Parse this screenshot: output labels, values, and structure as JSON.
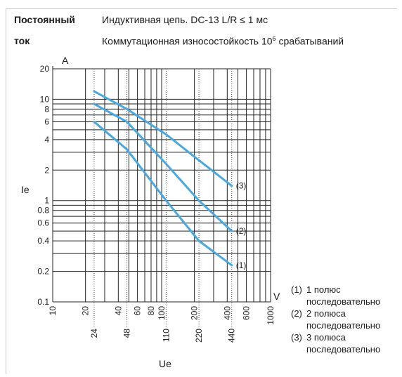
{
  "header": {
    "label_line1": "Постоянный",
    "label_line2": "ток",
    "text_line1": "Индуктивная цепь. DC-13 L/R ≤ 1 мс",
    "text_line2_prefix": "Коммутационная износостойкость 10",
    "text_line2_sup": "6",
    "text_line2_suffix": " срабатываний"
  },
  "chart_data": {
    "type": "line",
    "xscale": "log",
    "yscale": "log",
    "xlabel": "Ue",
    "ylabel": "Ie",
    "x_unit": "V",
    "y_unit": "A",
    "xlim": [
      10,
      1000
    ],
    "ylim": [
      0.1,
      20
    ],
    "grid": true,
    "x_ticks_top_row": [
      "10",
      "20",
      "40",
      "60",
      "80",
      "100",
      "200",
      "400",
      "600",
      "1000"
    ],
    "x_ticks_bottom_row": [
      "24",
      "48",
      "110",
      "220",
      "440"
    ],
    "y_ticks": [
      "0.1",
      "0.2",
      "0.4",
      "0.6",
      "0.8",
      "1",
      "2",
      "4",
      "6",
      "8",
      "10",
      "20"
    ],
    "series": [
      {
        "name": "(1)",
        "x": [
          24,
          48,
          110,
          220,
          440
        ],
        "y": [
          6,
          3.2,
          1,
          0.4,
          0.23
        ]
      },
      {
        "name": "(2)",
        "x": [
          24,
          48,
          110,
          220,
          440
        ],
        "y": [
          9,
          6,
          2.3,
          1,
          0.5
        ]
      },
      {
        "name": "(3)",
        "x": [
          24,
          48,
          110,
          220,
          440
        ],
        "y": [
          12,
          8,
          4.5,
          2.5,
          1.4
        ]
      }
    ],
    "legend": [
      {
        "num": "(1)",
        "text1": "1 полюс",
        "text2": "последовательно"
      },
      {
        "num": "(2)",
        "text1": "2 полюса",
        "text2": "последовательно"
      },
      {
        "num": "(3)",
        "text1": "3 полюса",
        "text2": "последовательно"
      }
    ],
    "line_color": "#4aa8e0"
  }
}
